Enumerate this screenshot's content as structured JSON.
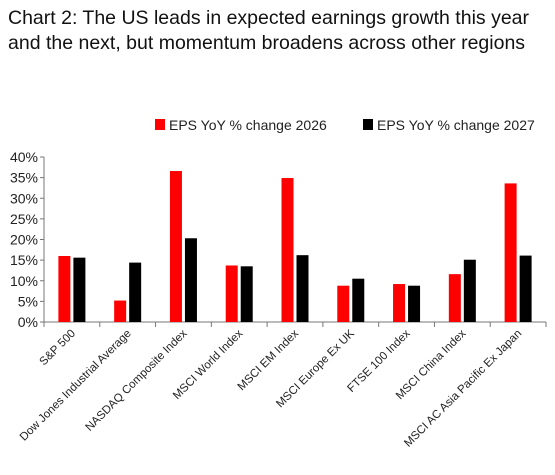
{
  "chart_data": {
    "type": "bar",
    "title": "Chart 2: The US leads in expected earnings growth this year and the next, but momentum broadens across other regions",
    "categories": [
      "S&P 500",
      "Dow Jones Industrial Average",
      "NASDAQ Composite Index",
      "MSCI World Index",
      "MSCI EM Index",
      "MSCI Europe Ex UK",
      "FTSE 100 Index",
      "MSCI China Index",
      "MSCI AC Asia Pacific Ex Japan"
    ],
    "series": [
      {
        "name": "EPS YoY % change 2026",
        "color": "#ff0000",
        "values": [
          16.0,
          5.2,
          36.6,
          13.7,
          34.9,
          8.8,
          9.2,
          11.6,
          33.6
        ]
      },
      {
        "name": "EPS YoY % change 2027",
        "color": "#000000",
        "values": [
          15.6,
          14.4,
          20.3,
          13.5,
          16.2,
          10.5,
          8.8,
          15.1,
          16.1
        ]
      }
    ],
    "ylim": [
      0,
      40
    ],
    "yticks": [
      "0%",
      "5%",
      "10%",
      "15%",
      "20%",
      "25%",
      "30%",
      "35%",
      "40%"
    ],
    "ytick_values": [
      0,
      5,
      10,
      15,
      20,
      25,
      30,
      35,
      40
    ],
    "legend": "top",
    "grid": false
  }
}
